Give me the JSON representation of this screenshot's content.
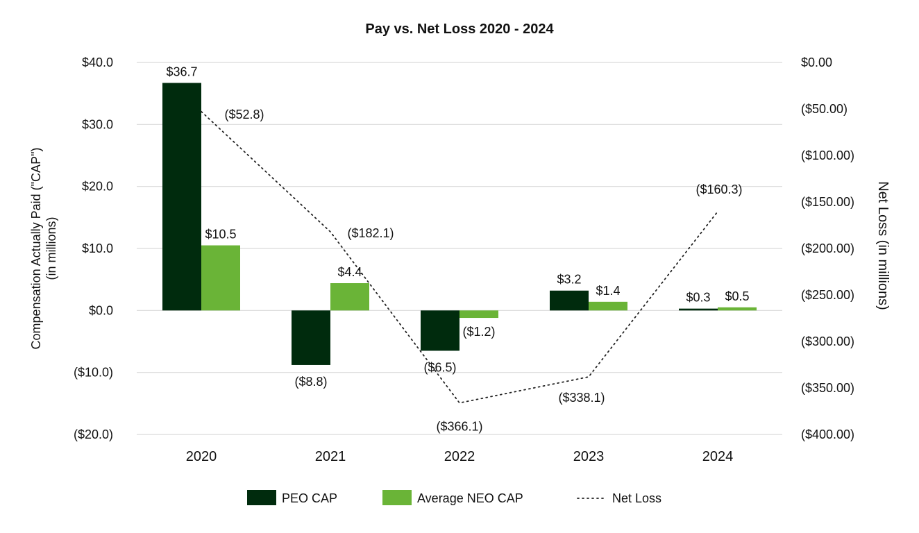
{
  "chart_data": {
    "type": "bar",
    "title": "Pay vs. Net Loss 2020 - 2024",
    "categories": [
      "2020",
      "2021",
      "2022",
      "2023",
      "2024"
    ],
    "ylabel_left_line1": "Compensation Actually Paid (\"CAP\")",
    "ylabel_left_line2": "(in millions)",
    "ylabel_right": "Net Loss (in millions)",
    "ylim_left": [
      -20,
      40
    ],
    "ylim_right": [
      -400,
      0
    ],
    "yticks_left": [
      "$40.0",
      "$30.0",
      "$20.0",
      "$10.0",
      "$0.0",
      "($10.0)",
      "($20.0)"
    ],
    "yticks_right": [
      "$0.00",
      "($50.00)",
      "($100.00)",
      "($150.00)",
      "($200.00)",
      "($250.00)",
      "($300.00)",
      "($350.00)",
      "($400.00)"
    ],
    "gridlines": true,
    "legend_position": "bottom",
    "series": [
      {
        "name": "PEO CAP",
        "type": "bar",
        "axis": "left",
        "color": "#002b0d",
        "values": [
          36.7,
          -8.8,
          -6.5,
          3.2,
          0.3
        ],
        "labels": [
          "$36.7",
          "($8.8)",
          "($6.5)",
          "$3.2",
          "$0.3"
        ]
      },
      {
        "name": "Average NEO CAP",
        "type": "bar",
        "axis": "left",
        "color": "#6ab437",
        "values": [
          10.5,
          4.4,
          -1.2,
          1.4,
          0.5
        ],
        "labels": [
          "$10.5",
          "$4.4",
          "($1.2)",
          "$1.4",
          "$0.5"
        ]
      },
      {
        "name": "Net Loss",
        "type": "line",
        "style": "dotted",
        "axis": "right",
        "color": "#222222",
        "values": [
          -52.8,
          -182.1,
          -366.1,
          -338.1,
          -160.3
        ],
        "labels": [
          "($52.8)",
          "($182.1)",
          "($366.1)",
          "($338.1)",
          "($160.3)"
        ]
      }
    ]
  }
}
